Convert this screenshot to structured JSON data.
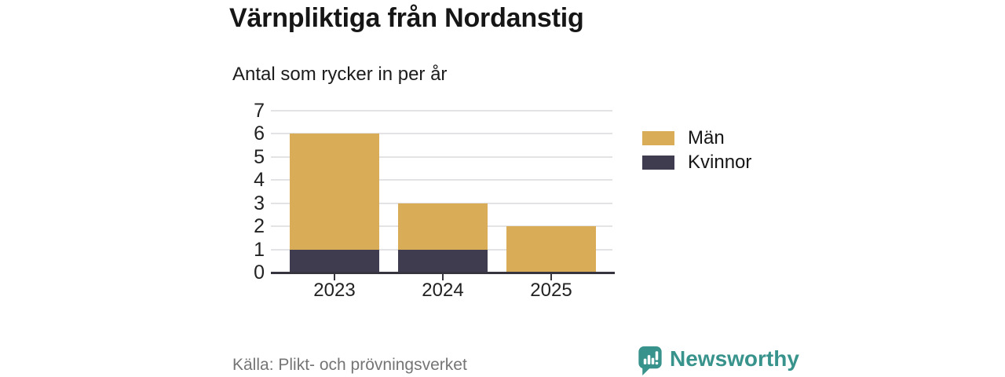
{
  "chart_data": {
    "type": "bar",
    "stacked": true,
    "title": "Värnpliktiga från Nordanstig",
    "subtitle": "Antal som rycker in per år",
    "categories": [
      "2023",
      "2024",
      "2025"
    ],
    "series": [
      {
        "name": "Män",
        "color": "#d9ac57",
        "values": [
          5,
          2,
          2
        ]
      },
      {
        "name": "Kvinnor",
        "color": "#3e3c4e",
        "values": [
          1,
          1,
          0
        ]
      }
    ],
    "stack_order_bottom_to_top": [
      "Kvinnor",
      "Män"
    ],
    "totals": [
      6,
      3,
      2
    ],
    "xlabel": "",
    "ylabel": "",
    "ylim": [
      0,
      7
    ],
    "yticks": [
      0,
      1,
      2,
      3,
      4,
      5,
      6,
      7
    ],
    "grid": true,
    "legend_position": "right",
    "colors": {
      "grid": "#e3e3e6",
      "axis": "#35343f",
      "text": "#222222"
    }
  },
  "footer": {
    "source": "Källa: Plikt- och prövningsverket",
    "brand": "Newsworthy",
    "brand_color": "#38938c"
  }
}
